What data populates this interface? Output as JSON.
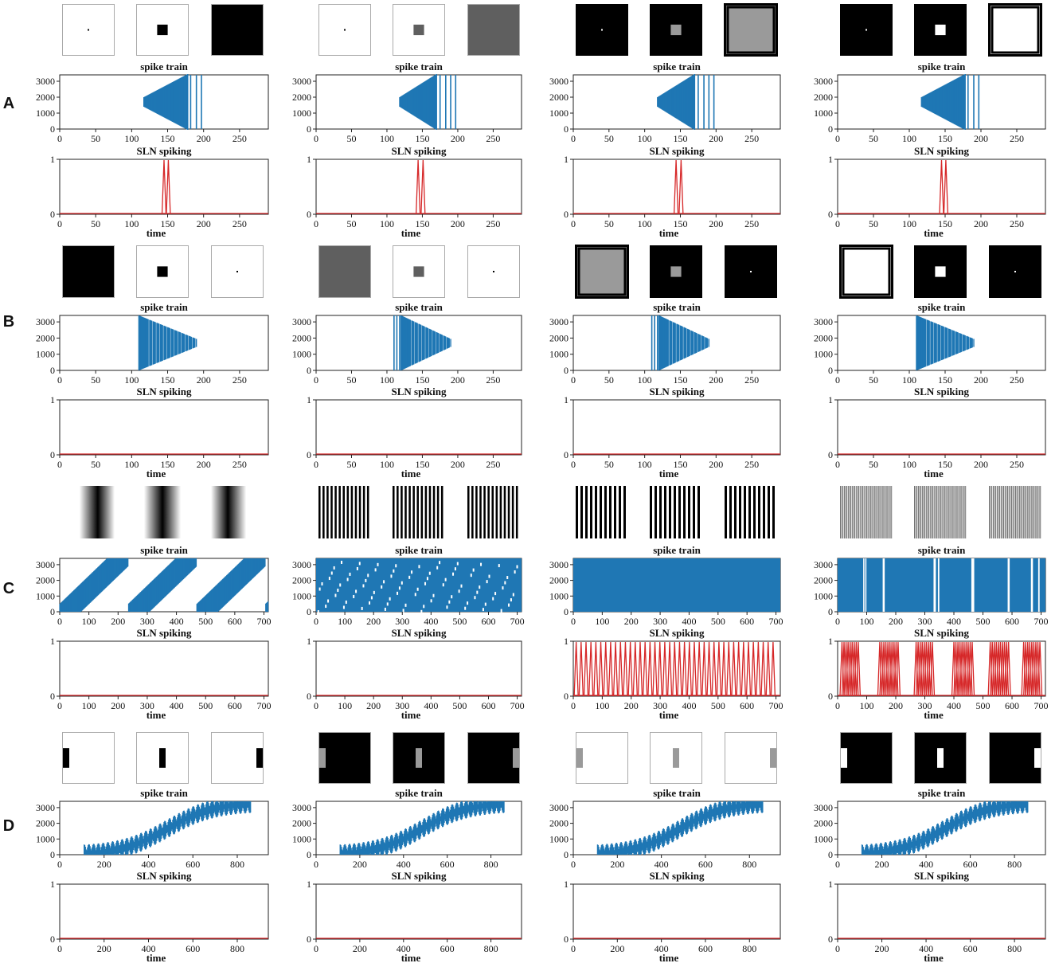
{
  "figure": {
    "colors": {
      "spike": "#1f77b4",
      "sln": "#d62728",
      "frame": "#222222"
    },
    "rows": [
      {
        "label": "A",
        "x_ticks": [
          0,
          50,
          100,
          150,
          200,
          250
        ],
        "x_max": 290,
        "panels": [
          {
            "stimuli": [
              {
                "kind": "dot",
                "bg": "#ffffff",
                "fg": "#000000",
                "border": "#aaaaaa"
              },
              {
                "kind": "square",
                "bg": "#ffffff",
                "fg": "#000000",
                "border": "#aaaaaa"
              },
              {
                "kind": "full",
                "bg": "#000000",
                "fg": "#000000",
                "border": "#aaaaaa"
              }
            ],
            "spike_train": {
              "title": "spike train",
              "type": "expanding",
              "start": 117,
              "end": 178,
              "lines": [
                182,
                190,
                197
              ]
            },
            "sln": {
              "title": "SLN spiking",
              "spikes": [
                145,
                151
              ],
              "xlabel": "time"
            }
          },
          {
            "stimuli": [
              {
                "kind": "dot",
                "bg": "#ffffff",
                "fg": "#000000",
                "border": "#aaaaaa"
              },
              {
                "kind": "square",
                "bg": "#ffffff",
                "fg": "#5f5f5f",
                "border": "#aaaaaa"
              },
              {
                "kind": "full",
                "bg": "#5f5f5f",
                "fg": "#5f5f5f",
                "border": "#aaaaaa"
              }
            ],
            "spike_train": {
              "title": "spike train",
              "type": "expanding",
              "start": 118,
              "end": 170,
              "lines": [
                175,
                183,
                190,
                197
              ]
            },
            "sln": {
              "title": "SLN spiking",
              "spikes": [
                144,
                151
              ],
              "xlabel": "time"
            }
          },
          {
            "stimuli": [
              {
                "kind": "dot",
                "bg": "#000000",
                "fg": "#ffffff",
                "border": "#000000"
              },
              {
                "kind": "square",
                "bg": "#000000",
                "fg": "#9a9a9a",
                "border": "#000000"
              },
              {
                "kind": "full",
                "bg": "#9a9a9a",
                "fg": "#9a9a9a",
                "border": "#000000"
              }
            ],
            "spike_train": {
              "title": "spike train",
              "type": "expanding",
              "start": 118,
              "end": 170,
              "lines": [
                175,
                183,
                190,
                197
              ]
            },
            "sln": {
              "title": "SLN spiking",
              "spikes": [
                144,
                151
              ],
              "xlabel": "time"
            }
          },
          {
            "stimuli": [
              {
                "kind": "dot",
                "bg": "#000000",
                "fg": "#ffffff",
                "border": "#000000"
              },
              {
                "kind": "square",
                "bg": "#000000",
                "fg": "#ffffff",
                "border": "#000000"
              },
              {
                "kind": "full",
                "bg": "#ffffff",
                "fg": "#ffffff",
                "border": "#000000"
              }
            ],
            "spike_train": {
              "title": "spike train",
              "type": "expanding",
              "start": 117,
              "end": 178,
              "lines": [
                182,
                190,
                197
              ]
            },
            "sln": {
              "title": "SLN spiking",
              "spikes": [
                145,
                151
              ],
              "xlabel": "time"
            }
          }
        ]
      },
      {
        "label": "B",
        "x_ticks": [
          0,
          50,
          100,
          150,
          200,
          250
        ],
        "x_max": 290,
        "panels": [
          {
            "stimuli": [
              {
                "kind": "full",
                "bg": "#000000",
                "fg": "#000000",
                "border": "#aaaaaa"
              },
              {
                "kind": "square",
                "bg": "#ffffff",
                "fg": "#000000",
                "border": "#aaaaaa"
              },
              {
                "kind": "dot",
                "bg": "#ffffff",
                "fg": "#000000",
                "border": "#aaaaaa"
              }
            ],
            "spike_train": {
              "title": "spike train",
              "type": "contracting",
              "start": 110,
              "end": 190,
              "lines": []
            },
            "sln": {
              "title": "SLN spiking",
              "spikes": [],
              "xlabel": "time"
            }
          },
          {
            "stimuli": [
              {
                "kind": "full",
                "bg": "#5f5f5f",
                "fg": "#5f5f5f",
                "border": "#aaaaaa"
              },
              {
                "kind": "square",
                "bg": "#ffffff",
                "fg": "#5f5f5f",
                "border": "#aaaaaa"
              },
              {
                "kind": "dot",
                "bg": "#ffffff",
                "fg": "#000000",
                "border": "#aaaaaa"
              }
            ],
            "spike_train": {
              "title": "spike train",
              "type": "contracting",
              "start": 120,
              "end": 190,
              "lines": [
                110,
                114,
                118
              ]
            },
            "sln": {
              "title": "SLN spiking",
              "spikes": [],
              "xlabel": "time"
            }
          },
          {
            "stimuli": [
              {
                "kind": "full",
                "bg": "#9a9a9a",
                "fg": "#9a9a9a",
                "border": "#000000"
              },
              {
                "kind": "square",
                "bg": "#000000",
                "fg": "#9a9a9a",
                "border": "#000000"
              },
              {
                "kind": "dot",
                "bg": "#000000",
                "fg": "#ffffff",
                "border": "#000000"
              }
            ],
            "spike_train": {
              "title": "spike train",
              "type": "contracting",
              "start": 120,
              "end": 190,
              "lines": [
                110,
                114,
                118
              ]
            },
            "sln": {
              "title": "SLN spiking",
              "spikes": [],
              "xlabel": "time"
            }
          },
          {
            "stimuli": [
              {
                "kind": "full",
                "bg": "#ffffff",
                "fg": "#ffffff",
                "border": "#000000"
              },
              {
                "kind": "square",
                "bg": "#000000",
                "fg": "#ffffff",
                "border": "#000000"
              },
              {
                "kind": "dot",
                "bg": "#000000",
                "fg": "#ffffff",
                "border": "#000000"
              }
            ],
            "spike_train": {
              "title": "spike train",
              "type": "contracting",
              "start": 110,
              "end": 190,
              "lines": []
            },
            "sln": {
              "title": "SLN spiking",
              "spikes": [],
              "xlabel": "time"
            }
          }
        ]
      },
      {
        "label": "C",
        "x_ticks": [
          0,
          100,
          200,
          300,
          400,
          500,
          600,
          700
        ],
        "x_max": 715,
        "panels": [
          {
            "stimuli": [
              {
                "kind": "gradient",
                "phase": 0.3
              },
              {
                "kind": "gradient",
                "phase": 0.0
              },
              {
                "kind": "gradient",
                "phase": -0.3
              }
            ],
            "spike_train": {
              "title": "spike train",
              "type": "diagonal",
              "period": 235,
              "lines": []
            },
            "sln": {
              "title": "SLN spiking",
              "spikes": [],
              "xlabel": "time"
            }
          },
          {
            "stimuli": [
              {
                "kind": "stripes",
                "count": 13,
                "color": "#000000"
              },
              {
                "kind": "stripes",
                "count": 13,
                "color": "#000000"
              },
              {
                "kind": "stripes",
                "count": 13,
                "color": "#000000"
              }
            ],
            "spike_train": {
              "title": "spike train",
              "type": "dense",
              "lines": []
            },
            "sln": {
              "title": "SLN spiking",
              "spikes": [],
              "xlabel": "time"
            }
          },
          {
            "stimuli": [
              {
                "kind": "stripes",
                "count": 11,
                "color": "#000000"
              },
              {
                "kind": "stripes",
                "count": 11,
                "color": "#000000"
              },
              {
                "kind": "stripes",
                "count": 11,
                "color": "#000000"
              }
            ],
            "spike_train": {
              "title": "spike train",
              "type": "solid",
              "lines": []
            },
            "sln": {
              "title": "SLN spiking",
              "periodic": {
                "start": 10,
                "end": 705,
                "step": 17
              },
              "spikes": [],
              "xlabel": "time"
            }
          },
          {
            "stimuli": [
              {
                "kind": "stripes",
                "count": 40,
                "color": "#555555"
              },
              {
                "kind": "stripes",
                "count": 40,
                "color": "#555555"
              },
              {
                "kind": "stripes",
                "count": 40,
                "color": "#555555"
              }
            ],
            "spike_train": {
              "title": "spike train",
              "type": "bursty",
              "gaps": [
                [
                  88,
                  92
                ],
                [
                  95,
                  98
                ],
                [
                  155,
                  162
                ],
                [
                  330,
                  338
                ],
                [
                  345,
                  350
                ],
                [
                  460,
                  470
                ],
                [
                  585,
                  592
                ],
                [
                  665,
                  672
                ],
                [
                  690,
                  695
                ]
              ],
              "lines": []
            },
            "sln": {
              "title": "SLN spiking",
              "bursts": [
                [
                  15,
                  75
                ],
                [
                  145,
                  210
                ],
                [
                  270,
                  330
                ],
                [
                  400,
                  465
                ],
                [
                  525,
                  590
                ],
                [
                  640,
                  700
                ]
              ],
              "burst_step": 7,
              "spikes": [],
              "xlabel": "time"
            }
          }
        ]
      },
      {
        "label": "D",
        "x_ticks": [
          0,
          200,
          400,
          600,
          800
        ],
        "x_max": 940,
        "panels": [
          {
            "stimuli": [
              {
                "kind": "bar",
                "bg": "#ffffff",
                "fg": "#000000",
                "pos": 0.0
              },
              {
                "kind": "bar",
                "bg": "#ffffff",
                "fg": "#000000",
                "pos": 0.5
              },
              {
                "kind": "bar",
                "bg": "#ffffff",
                "fg": "#000000",
                "pos": 1.0
              }
            ],
            "spike_train": {
              "title": "spike train",
              "type": "sigmoid",
              "start": 110,
              "end": 860,
              "lines": []
            },
            "sln": {
              "title": "SLN spiking",
              "spikes": [],
              "xlabel": "time"
            }
          },
          {
            "stimuli": [
              {
                "kind": "bar",
                "bg": "#000000",
                "fg": "#9a9a9a",
                "pos": 0.0
              },
              {
                "kind": "bar",
                "bg": "#000000",
                "fg": "#9a9a9a",
                "pos": 0.5
              },
              {
                "kind": "bar",
                "bg": "#000000",
                "fg": "#9a9a9a",
                "pos": 1.0
              }
            ],
            "spike_train": {
              "title": "spike train",
              "type": "sigmoid",
              "start": 110,
              "end": 860,
              "lines": []
            },
            "sln": {
              "title": "SLN spiking",
              "spikes": [],
              "xlabel": "time"
            }
          },
          {
            "stimuli": [
              {
                "kind": "bar",
                "bg": "#ffffff",
                "fg": "#9a9a9a",
                "pos": 0.0
              },
              {
                "kind": "bar",
                "bg": "#ffffff",
                "fg": "#9a9a9a",
                "pos": 0.5
              },
              {
                "kind": "bar",
                "bg": "#ffffff",
                "fg": "#9a9a9a",
                "pos": 1.0
              }
            ],
            "spike_train": {
              "title": "spike train",
              "type": "sigmoid",
              "start": 110,
              "end": 860,
              "lines": []
            },
            "sln": {
              "title": "SLN spiking",
              "spikes": [],
              "xlabel": "time"
            }
          },
          {
            "stimuli": [
              {
                "kind": "bar",
                "bg": "#000000",
                "fg": "#ffffff",
                "pos": 0.0
              },
              {
                "kind": "bar",
                "bg": "#000000",
                "fg": "#ffffff",
                "pos": 0.5
              },
              {
                "kind": "bar",
                "bg": "#000000",
                "fg": "#ffffff",
                "pos": 1.0
              }
            ],
            "spike_train": {
              "title": "spike train",
              "type": "sigmoid",
              "start": 110,
              "end": 860,
              "lines": []
            },
            "sln": {
              "title": "SLN spiking",
              "spikes": [],
              "xlabel": "time"
            }
          }
        ]
      }
    ]
  },
  "chart_data": [
    {
      "type": "raster",
      "row": "A",
      "title": "spike train",
      "y_ticks": [
        0,
        1000,
        2000,
        3000
      ],
      "ylim": [
        0,
        3400
      ],
      "x_ticks": [
        0,
        50,
        100,
        150,
        200,
        250
      ],
      "xlim": [
        0,
        290
      ],
      "note_values": {
        "onset_range": [
          117,
          200
        ]
      }
    },
    {
      "type": "line",
      "row": "A",
      "title": "SLN spiking",
      "xlabel": "time",
      "y_ticks": [
        0,
        1
      ],
      "ylim": [
        0,
        1
      ],
      "spike_times": [
        145,
        151
      ]
    },
    {
      "type": "raster",
      "row": "B",
      "title": "spike train",
      "y_ticks": [
        0,
        1000,
        2000,
        3000
      ],
      "ylim": [
        0,
        3400
      ],
      "xlim": [
        0,
        290
      ],
      "note_values": {
        "onset_range": [
          110,
          190
        ]
      }
    },
    {
      "type": "line",
      "row": "B",
      "title": "SLN spiking",
      "xlabel": "time",
      "y_ticks": [
        0,
        1
      ],
      "ylim": [
        0,
        1
      ],
      "spike_times": []
    },
    {
      "type": "raster",
      "row": "C",
      "title": "spike train",
      "y_ticks": [
        0,
        1000,
        2000,
        3000
      ],
      "ylim": [
        0,
        3400
      ],
      "x_ticks": [
        0,
        100,
        200,
        300,
        400,
        500,
        600,
        700
      ],
      "xlim": [
        0,
        715
      ]
    },
    {
      "type": "line",
      "row": "C",
      "title": "SLN spiking",
      "xlabel": "time",
      "y_ticks": [
        0,
        1
      ],
      "ylim": [
        0,
        1
      ]
    },
    {
      "type": "raster",
      "row": "D",
      "title": "spike train",
      "y_ticks": [
        0,
        1000,
        2000,
        3000
      ],
      "ylim": [
        0,
        3400
      ],
      "x_ticks": [
        0,
        200,
        400,
        600,
        800
      ],
      "xlim": [
        0,
        940
      ]
    },
    {
      "type": "line",
      "row": "D",
      "title": "SLN spiking",
      "xlabel": "time",
      "y_ticks": [
        0,
        1
      ],
      "ylim": [
        0,
        1
      ],
      "spike_times": []
    }
  ]
}
